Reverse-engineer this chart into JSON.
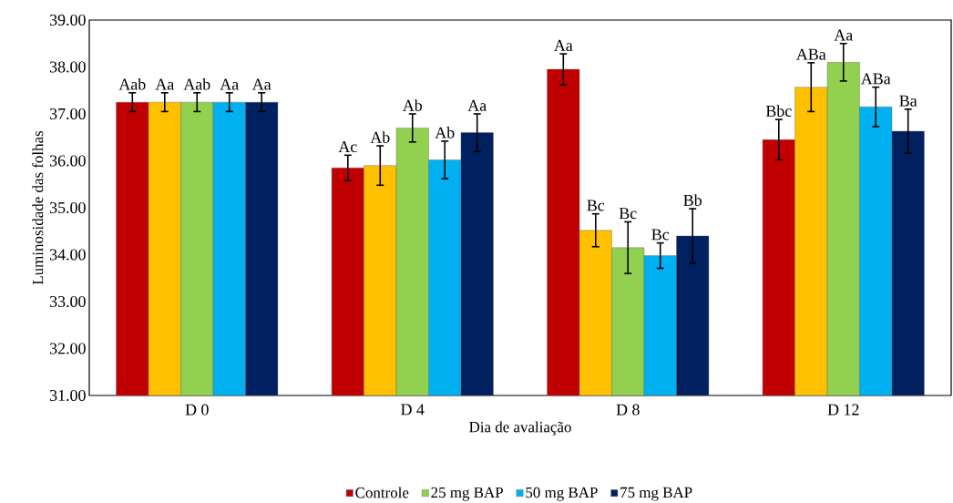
{
  "chart_data": {
    "type": "bar",
    "xlabel": "Dia de avaliação",
    "ylabel": "Luminosidade das folhas",
    "categories": [
      "D 0",
      "D 4",
      "D 8",
      "D 12"
    ],
    "series": [
      {
        "name": "Controle",
        "color": "#c00000",
        "values": [
          37.25,
          35.85,
          37.95,
          36.45
        ],
        "errors": [
          0.2,
          0.27,
          0.33,
          0.43
        ],
        "value_labels": [
          "Aab",
          "Ac",
          "Aa",
          "Bbc"
        ]
      },
      {
        "color": "#ffc000",
        "values": [
          37.25,
          35.9,
          34.52,
          37.57
        ],
        "errors": [
          0.2,
          0.42,
          0.35,
          0.52
        ],
        "value_labels": [
          "Aa",
          "Ab",
          "Bc",
          "ABa"
        ]
      },
      {
        "name": "25 mg BAP",
        "color": "#92d050",
        "values": [
          37.25,
          36.7,
          34.15,
          38.1
        ],
        "errors": [
          0.2,
          0.3,
          0.55,
          0.4
        ],
        "value_labels": [
          "Aab",
          "Ab",
          "Bc",
          "Aa"
        ]
      },
      {
        "name": "50 mg BAP",
        "color": "#00b0f0",
        "values": [
          37.25,
          36.02,
          33.98,
          37.15
        ],
        "errors": [
          0.2,
          0.4,
          0.27,
          0.42
        ],
        "value_labels": [
          "Aa",
          "Ab",
          "Bc",
          "ABa"
        ]
      },
      {
        "name": "75 mg BAP",
        "color": "#002060",
        "values": [
          37.25,
          36.6,
          34.4,
          36.63
        ],
        "errors": [
          0.2,
          0.4,
          0.58,
          0.47
        ],
        "value_labels": [
          "Aa",
          "Aa",
          "Bb",
          "Ba"
        ]
      }
    ],
    "ylim": [
      31,
      39
    ],
    "yticks": [
      {
        "value": 31,
        "label": "31.00"
      },
      {
        "value": 32,
        "label": "32.00"
      },
      {
        "value": 33,
        "label": "33.00"
      },
      {
        "value": 34,
        "label": "34.00"
      },
      {
        "value": 35,
        "label": "35.00"
      },
      {
        "value": 36,
        "label": "36.00"
      },
      {
        "value": 37,
        "label": "37.00"
      },
      {
        "value": 38,
        "label": "38.00"
      },
      {
        "value": 39,
        "label": "39.00"
      }
    ],
    "grid": false,
    "legend": "bottom"
  }
}
